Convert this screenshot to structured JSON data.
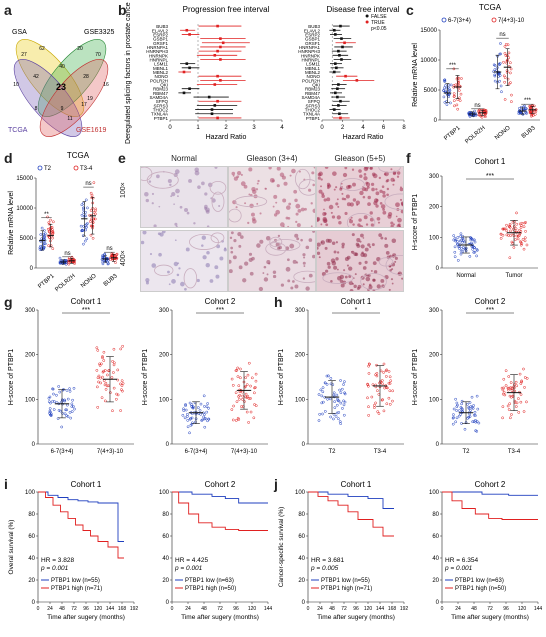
{
  "panel_labels": {
    "a": "a",
    "b": "b",
    "c": "c",
    "d": "d",
    "e": "e",
    "f": "f",
    "g": "g",
    "h": "h",
    "i": "i",
    "j": "j"
  },
  "venn": {
    "sets": [
      "GSA",
      "GSE3325",
      "TCGA",
      "GSE1619"
    ],
    "region_values": [
      "27",
      "70",
      "10",
      "62",
      "20",
      "16",
      "42",
      "28",
      "9",
      "8",
      "23",
      "17",
      "19",
      "40",
      "11"
    ]
  },
  "colors": {
    "blue": "#1f3fbf",
    "red": "#e02020",
    "black": "#111111",
    "venn_gsa": "#f0d64a",
    "venn_gse3325": "#3cb04a",
    "venn_tcga": "#7b61b8",
    "venn_gse1619": "#e06060"
  },
  "chart_data": [
    {
      "id": "b-left",
      "type": "scatter",
      "title": "Progression free interval",
      "ylabel": "Deregulated splicing factors in prostate cancer",
      "xlabel": "Hazard Ratio",
      "xlim": [
        0,
        4
      ],
      "xticks": [
        "0",
        "1",
        "2",
        "3",
        "4"
      ],
      "categories": [
        "BUB3",
        "ELAVL2",
        "ESRP2",
        "GSBP1",
        "GRSF1",
        "HNRNPA1",
        "HNRNPH3",
        "HNRNPK",
        "HNRNPL",
        "LSM11",
        "MBNL1",
        "MBNL2",
        "NONO",
        "POLR2H",
        "QKI",
        "RBM23",
        "RBM47",
        "SAMD4A",
        "SFPQ",
        "SFRS3",
        "THOC2",
        "TXNL4A",
        "PTBP1"
      ],
      "values": [
        1.7,
        0.6,
        0.7,
        1.8,
        1.9,
        1.8,
        1.7,
        1.6,
        1.8,
        0.6,
        0.7,
        0.5,
        1.7,
        1.8,
        1.6,
        0.7,
        0.5,
        1.4,
        1.7,
        1.6,
        1.5,
        1.5,
        1.7
      ],
      "significant": [
        true,
        true,
        true,
        true,
        true,
        true,
        true,
        true,
        true,
        false,
        false,
        true,
        true,
        true,
        true,
        false,
        false,
        false,
        true,
        false,
        false,
        false,
        true
      ]
    },
    {
      "id": "b-right",
      "type": "scatter",
      "title": "Disease free interval",
      "xlabel": "Hazard Ratio",
      "xlim": [
        0,
        8
      ],
      "xticks": [
        "0",
        "2",
        "4",
        "6",
        "8"
      ],
      "legend": [
        "FALSE",
        "TRUE",
        "p<0.05"
      ],
      "categories": [
        "BUB3",
        "ELAVL2",
        "ESRP2",
        "GSBP1",
        "GRSF1",
        "HNRNPA1",
        "HNRNPH3",
        "HNRNPK",
        "HNRNPL",
        "LSM11",
        "MBNL1",
        "MBNL2",
        "NONO",
        "POLR2H",
        "QKI",
        "RBM23",
        "RBM47",
        "SAMD4A",
        "SFPQ",
        "SFRS3",
        "THOC2",
        "TXNL4A",
        "PTBP1"
      ],
      "values": [
        1.8,
        1.2,
        1.3,
        1.9,
        2.2,
        2.0,
        1.6,
        1.7,
        1.9,
        1.3,
        1.4,
        1.2,
        2.3,
        3.4,
        1.6,
        1.5,
        1.3,
        1.5,
        1.8,
        1.6,
        1.2,
        1.7,
        1.8
      ],
      "significant": [
        false,
        false,
        false,
        false,
        true,
        false,
        false,
        false,
        false,
        false,
        false,
        false,
        true,
        true,
        false,
        false,
        false,
        false,
        false,
        false,
        false,
        false,
        true
      ]
    },
    {
      "id": "c",
      "type": "scatter",
      "title": "TCGA",
      "ylabel": "Relative mRNA level",
      "ylim": [
        0,
        15000
      ],
      "yticks": [
        "0",
        "5000",
        "10000",
        "15000"
      ],
      "categories": [
        "PTBP1",
        "POLR2H",
        "NONO",
        "BUB3"
      ],
      "series": [
        {
          "name": "6-7(3+4)",
          "values": [
            4500,
            1000,
            8000,
            1500
          ]
        },
        {
          "name": "7(4+3)-10",
          "values": [
            5500,
            1200,
            8800,
            1700
          ]
        }
      ],
      "annotations": [
        "***",
        "ns",
        "ns",
        "***"
      ]
    },
    {
      "id": "d",
      "type": "scatter",
      "title": "TCGA",
      "ylabel": "Relative mRNA level",
      "ylim": [
        0,
        15000
      ],
      "yticks": [
        "0",
        "5000",
        "10000",
        "15000"
      ],
      "categories": [
        "PTBP1",
        "POLR2H",
        "NONO",
        "BUB3"
      ],
      "series": [
        {
          "name": "T2",
          "values": [
            4600,
            1000,
            8200,
            1500
          ]
        },
        {
          "name": "T3-4",
          "values": [
            5400,
            1200,
            8700,
            1700
          ]
        }
      ],
      "annotations": [
        "**",
        "ns",
        "ns",
        "ns"
      ]
    },
    {
      "id": "f",
      "type": "scatter",
      "title": "Cohort 1",
      "ylabel": "H-score of PTBP1",
      "ylim": [
        0,
        300
      ],
      "yticks": [
        "0",
        "100",
        "200",
        "300"
      ],
      "categories": [
        "Normal",
        "Tumor"
      ],
      "values": [
        75,
        115
      ],
      "annotations": [
        "***"
      ]
    },
    {
      "id": "g1",
      "type": "scatter",
      "title": "Cohort 1",
      "ylabel": "H-score of PTBP1",
      "ylim": [
        0,
        300
      ],
      "yticks": [
        "0",
        "100",
        "200",
        "300"
      ],
      "categories": [
        "6-7(3+4)",
        "7(4+3)-10"
      ],
      "values": [
        90,
        145
      ],
      "annotations": [
        "***"
      ]
    },
    {
      "id": "g2",
      "type": "scatter",
      "title": "Cohort 2",
      "ylabel": "H-score of PTBP1",
      "ylim": [
        0,
        300
      ],
      "yticks": [
        "0",
        "100",
        "200",
        "300"
      ],
      "categories": [
        "6-7(3+4)",
        "7(4+3)-10"
      ],
      "values": [
        70,
        120
      ],
      "annotations": [
        "***"
      ]
    },
    {
      "id": "h1",
      "type": "scatter",
      "title": "Cohort 1",
      "ylabel": "H-score of PTBP1",
      "ylim": [
        0,
        300
      ],
      "yticks": [
        "0",
        "100",
        "200",
        "300"
      ],
      "categories": [
        "T2",
        "T3-4"
      ],
      "values": [
        105,
        130
      ],
      "annotations": [
        "*"
      ]
    },
    {
      "id": "h2",
      "type": "scatter",
      "title": "Cohort 2",
      "ylabel": "H-score of PTBP1",
      "ylim": [
        0,
        300
      ],
      "yticks": [
        "0",
        "100",
        "200",
        "300"
      ],
      "categories": [
        "T2",
        "T3-4"
      ],
      "values": [
        70,
        115
      ],
      "annotations": [
        "***"
      ]
    },
    {
      "id": "i1",
      "type": "line",
      "title": "Cohort 1",
      "ylabel": "Overal survival (%)",
      "xlabel": "Time after sugery (months)",
      "ylim": [
        0,
        100
      ],
      "yticks": [
        "0",
        "20",
        "40",
        "60",
        "80",
        "100"
      ],
      "xlim": [
        0,
        192
      ],
      "xticks": [
        "0",
        "24",
        "48",
        "72",
        "96",
        "120",
        "144",
        "168",
        "192"
      ],
      "series": [
        {
          "name": "PTBP1 low (n=55)",
          "x": [
            0,
            20,
            40,
            60,
            80,
            100,
            120,
            150,
            160,
            172
          ],
          "y": [
            100,
            97,
            95,
            93,
            92,
            91,
            90,
            90,
            55,
            55
          ]
        },
        {
          "name": "PTBP1 high (n=71)",
          "x": [
            0,
            15,
            30,
            45,
            60,
            75,
            90,
            105,
            120,
            140,
            160,
            172
          ],
          "y": [
            100,
            95,
            88,
            82,
            76,
            70,
            65,
            60,
            55,
            50,
            40,
            40
          ]
        }
      ],
      "hr": "HR = 3.828",
      "p": "p = 0.001"
    },
    {
      "id": "i2",
      "type": "line",
      "title": "Cohort 2",
      "xlabel": "Time after sugery (months)",
      "ylim": [
        0,
        100
      ],
      "yticks": [
        "0",
        "20",
        "40",
        "60",
        "80",
        "100"
      ],
      "xlim": [
        0,
        144
      ],
      "xticks": [
        "0",
        "24",
        "48",
        "72",
        "96",
        "120",
        "144"
      ],
      "series": [
        {
          "name": "PTBP1 low (n=63)",
          "x": [
            0,
            30,
            60,
            80,
            100,
            144
          ],
          "y": [
            100,
            98,
            96,
            94,
            90,
            90
          ]
        },
        {
          "name": "PTBP1 high (n=50)",
          "x": [
            0,
            10,
            25,
            40,
            60,
            80,
            100,
            144
          ],
          "y": [
            100,
            90,
            80,
            72,
            68,
            66,
            65,
            65
          ]
        }
      ],
      "hr": "HR = 4.425",
      "p": "p = 0.001"
    },
    {
      "id": "j1",
      "type": "line",
      "title": "Cohort 1",
      "ylabel": "Cancer-specific survival (%)",
      "xlabel": "Time after sugery (months)",
      "ylim": [
        0,
        100
      ],
      "yticks": [
        "0",
        "20",
        "40",
        "60",
        "80",
        "100"
      ],
      "xlim": [
        0,
        192
      ],
      "xticks": [
        "0",
        "24",
        "48",
        "72",
        "96",
        "120",
        "144",
        "168",
        "192"
      ],
      "series": [
        {
          "name": "PTBP1 low (n=55)",
          "x": [
            0,
            40,
            80,
            120,
            150,
            172
          ],
          "y": [
            100,
            98,
            96,
            94,
            85,
            85
          ]
        },
        {
          "name": "PTBP1 high (n=71)",
          "x": [
            0,
            20,
            40,
            60,
            80,
            100,
            130,
            150,
            172
          ],
          "y": [
            100,
            96,
            92,
            88,
            82,
            75,
            68,
            60,
            60
          ]
        }
      ],
      "hr": "HR = 3.681",
      "p": "p = 0.005"
    },
    {
      "id": "j2",
      "type": "line",
      "title": "Cohort 2",
      "xlabel": "Time after sugery (months)",
      "ylim": [
        0,
        100
      ],
      "yticks": [
        "0",
        "20",
        "40",
        "60",
        "80",
        "100"
      ],
      "xlim": [
        0,
        144
      ],
      "xticks": [
        "0",
        "24",
        "48",
        "72",
        "96",
        "120",
        "144"
      ],
      "series": [
        {
          "name": "PTBP1 low (n=63)",
          "x": [
            0,
            60,
            100,
            144
          ],
          "y": [
            100,
            98,
            97,
            97
          ]
        },
        {
          "name": "PTBP1 high (n=50)",
          "x": [
            0,
            15,
            30,
            50,
            70,
            90,
            144
          ],
          "y": [
            100,
            92,
            85,
            80,
            76,
            75,
            75
          ]
        }
      ],
      "hr": "HR = 6.354",
      "p": "p = 0.001"
    }
  ],
  "micrographs": {
    "columns": [
      "Normal",
      "Gleason (3+4)",
      "Gleason (5+5)"
    ],
    "rows": [
      "100×",
      "400×"
    ]
  }
}
